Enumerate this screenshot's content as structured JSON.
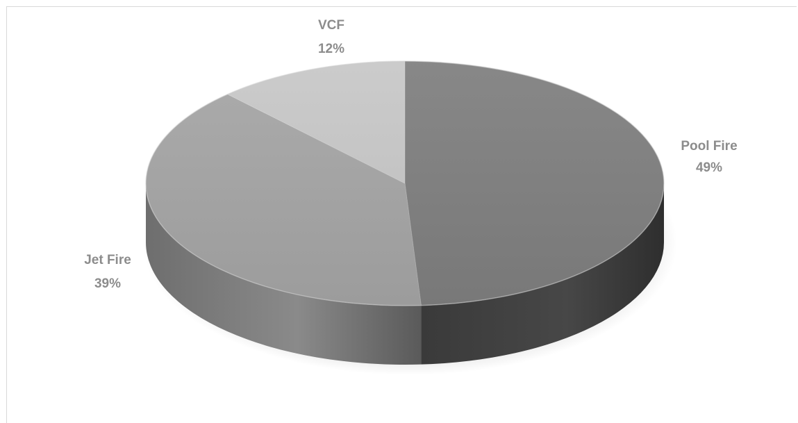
{
  "chart_data": {
    "type": "pie",
    "title": "",
    "slices": [
      {
        "name": "Pool Fire",
        "value": 49,
        "label": "49%",
        "color": "#808080"
      },
      {
        "name": "Jet Fire",
        "value": 39,
        "label": "39%",
        "color": "#a6a6a6"
      },
      {
        "name": "VCF",
        "value": 12,
        "label": "12%",
        "color": "#c8c8c8"
      }
    ],
    "style": "3d",
    "legend": "none"
  }
}
